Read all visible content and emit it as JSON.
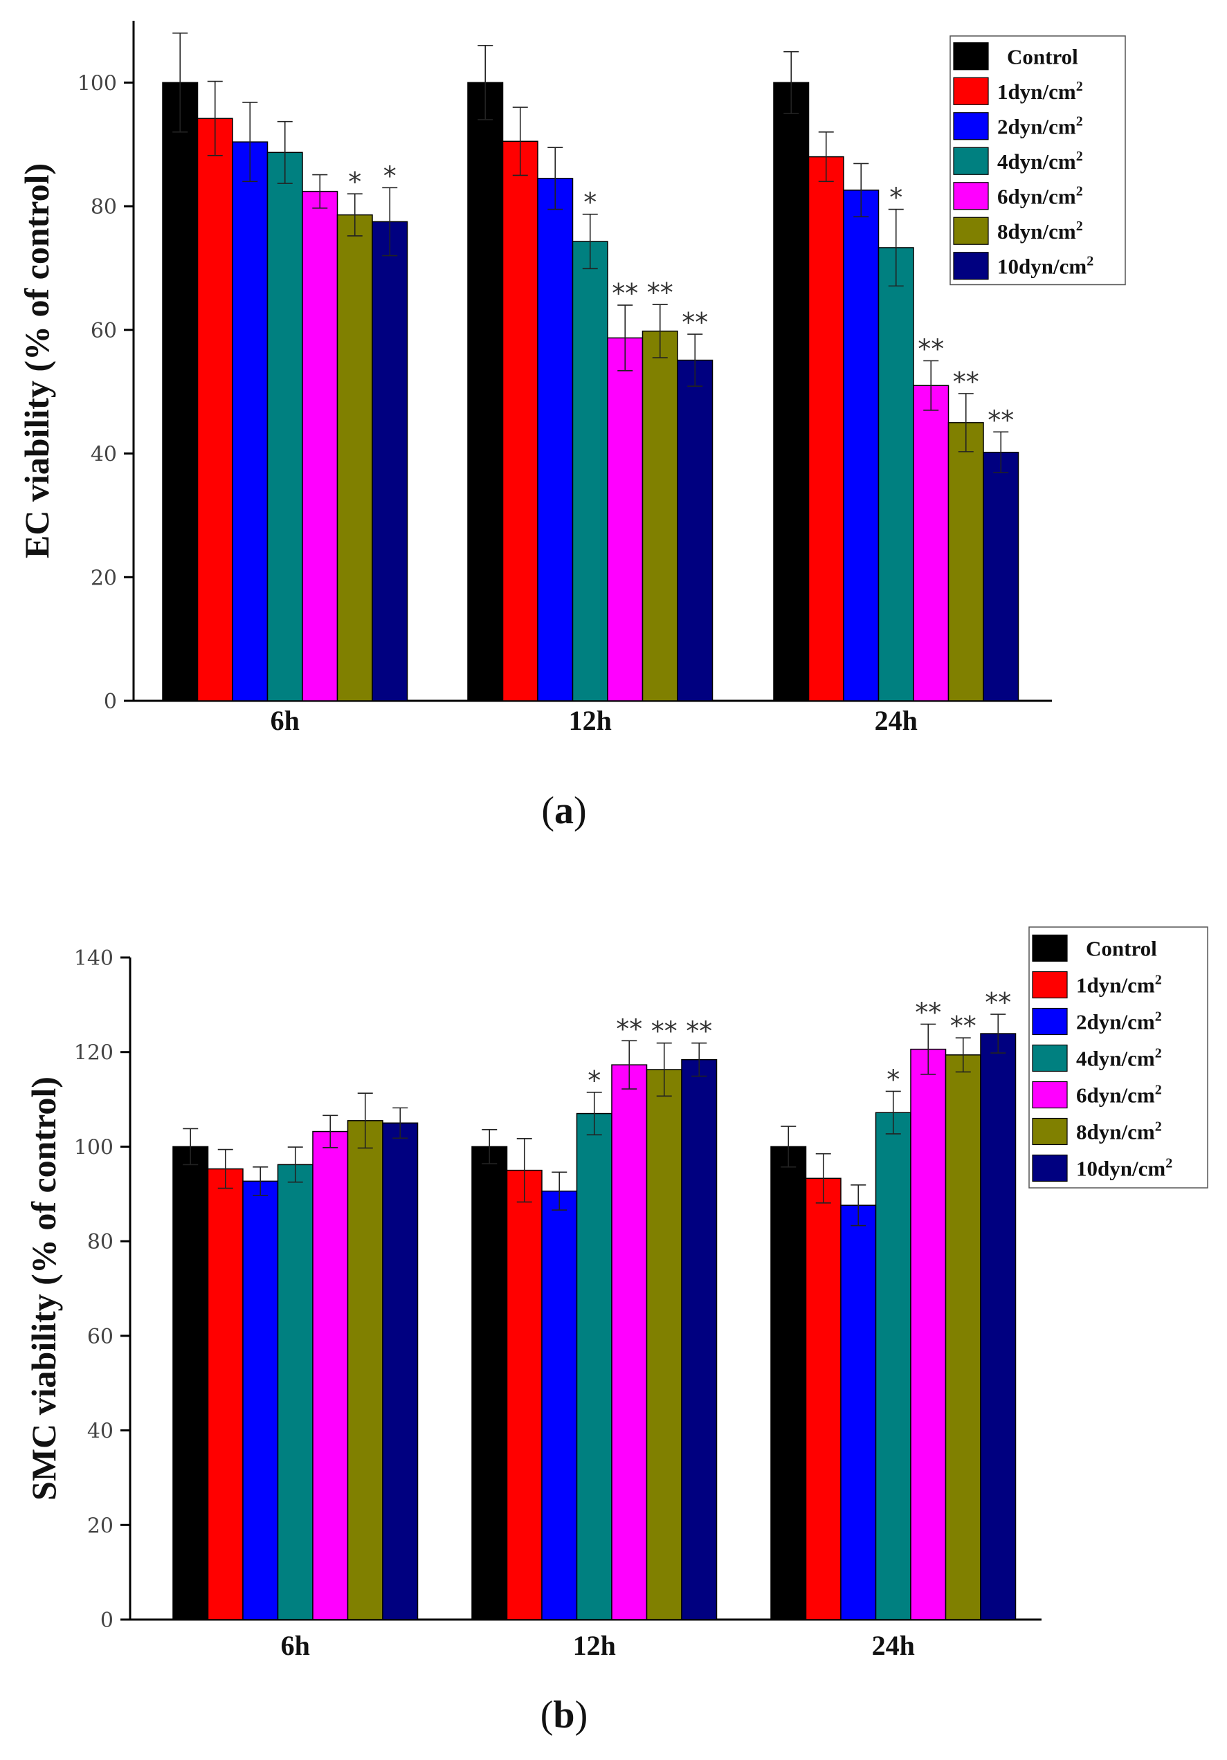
{
  "chart_data": [
    {
      "id": "a",
      "type": "bar",
      "panel_label": "a",
      "ylabel": "EC viability (% of control)",
      "xlabel": "",
      "categories": [
        "6h",
        "12h",
        "24h"
      ],
      "ylim": [
        0,
        110
      ],
      "yticks": [
        "0",
        "20",
        "40",
        "60",
        "80",
        "100"
      ],
      "legend_position": "top-right",
      "series": [
        {
          "name": "Control",
          "unit": "",
          "color": "#000000",
          "values": [
            100,
            100,
            100
          ],
          "errors": [
            8,
            6,
            5
          ],
          "sig": [
            "",
            "",
            ""
          ]
        },
        {
          "name": "1dyn/cm",
          "unit": "2",
          "color": "#ff0000",
          "values": [
            94.2,
            90.5,
            88
          ],
          "errors": [
            6,
            5.5,
            4
          ],
          "sig": [
            "",
            "",
            ""
          ]
        },
        {
          "name": "2dyn/cm",
          "unit": "2",
          "color": "#0000ff",
          "values": [
            90.4,
            84.5,
            82.6
          ],
          "errors": [
            6.4,
            5,
            4.3
          ],
          "sig": [
            "",
            "",
            ""
          ]
        },
        {
          "name": "4dyn/cm",
          "unit": "2",
          "color": "#008080",
          "values": [
            88.7,
            74.3,
            73.3
          ],
          "errors": [
            5,
            4.4,
            6.2
          ],
          "sig": [
            "",
            "*",
            "*"
          ]
        },
        {
          "name": "6dyn/cm",
          "unit": "2",
          "color": "#ff00ff",
          "values": [
            82.4,
            58.7,
            51
          ],
          "errors": [
            2.7,
            5.3,
            4
          ],
          "sig": [
            "",
            "**",
            "**"
          ]
        },
        {
          "name": "8dyn/cm",
          "unit": "2",
          "color": "#808000",
          "values": [
            78.6,
            59.8,
            45
          ],
          "errors": [
            3.4,
            4.3,
            4.7
          ],
          "sig": [
            "*",
            "**",
            "**"
          ]
        },
        {
          "name": "10dyn/cm",
          "unit": "2",
          "color": "#000080",
          "values": [
            77.5,
            55.1,
            40.2
          ],
          "errors": [
            5.5,
            4.2,
            3.3
          ],
          "sig": [
            "*",
            "**",
            "**"
          ]
        }
      ]
    },
    {
      "id": "b",
      "type": "bar",
      "panel_label": "b",
      "ylabel": "SMC viability (% of control)",
      "xlabel": "",
      "categories": [
        "6h",
        "12h",
        "24h"
      ],
      "ylim": [
        0,
        140
      ],
      "yticks": [
        "0",
        "20",
        "40",
        "60",
        "80",
        "100",
        "120",
        "140"
      ],
      "legend_position": "top-right",
      "series": [
        {
          "name": "Control",
          "unit": "",
          "color": "#000000",
          "values": [
            100,
            100,
            100
          ],
          "errors": [
            3.8,
            3.6,
            4.3
          ],
          "sig": [
            "",
            "",
            ""
          ]
        },
        {
          "name": "1dyn/cm",
          "unit": "2",
          "color": "#ff0000",
          "values": [
            95.3,
            95,
            93.3
          ],
          "errors": [
            4.1,
            6.7,
            5.2
          ],
          "sig": [
            "",
            "",
            ""
          ]
        },
        {
          "name": "2dyn/cm",
          "unit": "2",
          "color": "#0000ff",
          "values": [
            92.7,
            90.6,
            87.6
          ],
          "errors": [
            3,
            4,
            4.3
          ],
          "sig": [
            "",
            "",
            ""
          ]
        },
        {
          "name": "4dyn/cm",
          "unit": "2",
          "color": "#008080",
          "values": [
            96.2,
            107,
            107.2
          ],
          "errors": [
            3.7,
            4.5,
            4.5
          ],
          "sig": [
            "",
            "*",
            "*"
          ]
        },
        {
          "name": "6dyn/cm",
          "unit": "2",
          "color": "#ff00ff",
          "values": [
            103.2,
            117.3,
            120.6
          ],
          "errors": [
            3.4,
            5.1,
            5.3
          ],
          "sig": [
            "",
            "**",
            "**"
          ]
        },
        {
          "name": "8dyn/cm",
          "unit": "2",
          "color": "#808000",
          "values": [
            105.5,
            116.3,
            119.4
          ],
          "errors": [
            5.8,
            5.6,
            3.6
          ],
          "sig": [
            "",
            "**",
            "**"
          ]
        },
        {
          "name": "10dyn/cm",
          "unit": "2",
          "color": "#000080",
          "values": [
            105,
            118.4,
            123.9
          ],
          "errors": [
            3.2,
            3.5,
            4.1
          ],
          "sig": [
            "",
            "**",
            "**"
          ]
        }
      ]
    }
  ]
}
